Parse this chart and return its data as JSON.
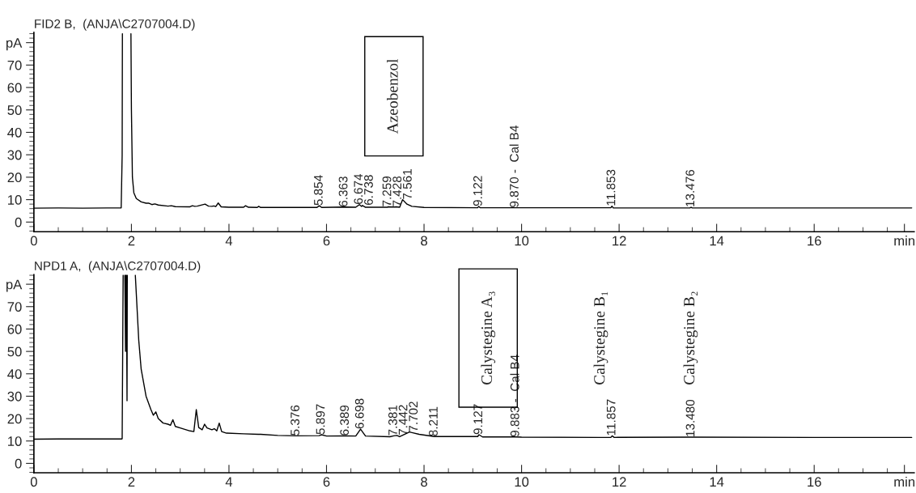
{
  "chart_data": [
    {
      "type": "line",
      "title": "FID2 B,  (ANJA\\C2707004.D)",
      "series": [
        {
          "color": "#000000",
          "x": [
            0,
            0.5,
            1.0,
            1.5,
            1.79,
            1.81,
            1.815,
            1.9,
            1.99,
            2.0,
            2.02,
            2.05,
            2.1,
            2.2,
            2.3,
            2.36,
            2.42,
            2.48,
            2.55,
            2.75,
            2.82,
            2.9,
            3.2,
            3.25,
            3.3,
            3.35,
            3.51,
            3.58,
            3.65,
            3.69,
            3.73,
            3.78,
            3.84,
            4.0,
            4.3,
            4.34,
            4.4,
            4.58,
            4.61,
            4.65,
            5.0,
            5.5,
            5.8,
            5.854,
            5.9,
            6.363,
            6.6,
            6.674,
            6.72,
            6.738,
            6.8,
            7.25,
            7.259,
            7.39,
            7.428,
            7.5,
            7.561,
            7.65,
            7.75,
            8.0,
            9.1,
            9.122,
            9.15,
            9.87,
            11.83,
            11.853,
            11.88,
            13.45,
            13.476,
            13.5,
            14,
            16,
            18
          ],
          "values": [
            6.2,
            6.3,
            6.2,
            6.3,
            6.3,
            30,
            84,
            null,
            84,
            50,
            20,
            13,
            10.5,
            9.0,
            8.4,
            8.4,
            7.8,
            8.1,
            7.6,
            7.1,
            7.3,
            6.9,
            6.8,
            7.3,
            7.0,
            7.1,
            8.0,
            7.1,
            7.0,
            7.2,
            6.9,
            8.5,
            6.8,
            6.6,
            6.6,
            7.3,
            6.6,
            6.5,
            7.0,
            6.5,
            6.5,
            6.5,
            6.5,
            7.3,
            6.5,
            6.7,
            6.6,
            7.8,
            7.0,
            7.4,
            6.6,
            6.6,
            6.8,
            6.7,
            6.8,
            6.6,
            10.0,
            8.0,
            7.0,
            6.5,
            6.4,
            7.0,
            6.4,
            6.4,
            6.4,
            7.1,
            6.3,
            6.3,
            6.6,
            6.3,
            6.3,
            6.3,
            6.3
          ]
        }
      ],
      "xlim": [
        0,
        18.05
      ],
      "ylim": [
        -4.3,
        84.5
      ],
      "xticks": [
        0,
        {
          "value": 0.5,
          "label": null
        },
        2,
        {
          "value": 1,
          "label": null
        },
        {
          "value": 1.5,
          "label": null
        },
        {
          "value": 2.5,
          "label": null
        },
        {
          "value": 3,
          "label": null
        },
        {
          "value": 3.5,
          "label": null
        },
        4,
        {
          "value": 4.5,
          "label": null
        },
        {
          "value": 5,
          "label": null
        },
        {
          "value": 5.5,
          "label": null
        },
        6,
        {
          "value": 6.5,
          "label": null
        },
        {
          "value": 7,
          "label": null
        },
        {
          "value": 7.5,
          "label": null
        },
        8,
        {
          "value": 8.5,
          "label": null
        },
        {
          "value": 9,
          "label": null
        },
        {
          "value": 9.5,
          "label": null
        },
        10,
        {
          "value": 10.5,
          "label": null
        },
        {
          "value": 11,
          "label": null
        },
        {
          "value": 11.5,
          "label": null
        },
        12,
        {
          "value": 12.5,
          "label": null
        },
        {
          "value": 13,
          "label": null
        },
        {
          "value": 13.5,
          "label": null
        },
        14,
        {
          "value": 14.5,
          "label": null
        },
        {
          "value": 15,
          "label": null
        },
        {
          "value": 15.5,
          "label": null
        },
        16,
        {
          "value": 16.5,
          "label": null
        },
        {
          "value": 17,
          "label": null
        },
        {
          "value": 17.5,
          "label": null
        },
        {
          "value": 17.85,
          "label": "min"
        }
      ],
      "yticks": [
        0,
        10,
        20,
        30,
        40,
        50,
        60,
        70,
        {
          "value": 80,
          "label": "pA"
        },
        {
          "value": -4,
          "label": null
        },
        {
          "value": -2,
          "label": null
        },
        {
          "value": 2,
          "label": null
        },
        {
          "value": 4,
          "label": null
        },
        {
          "value": 6,
          "label": null
        },
        {
          "value": 8,
          "label": null
        },
        {
          "value": 12,
          "label": null
        },
        {
          "value": 14,
          "label": null
        },
        {
          "value": 16,
          "label": null
        },
        {
          "value": 18,
          "label": null
        },
        {
          "value": 22,
          "label": null
        },
        {
          "value": 24,
          "label": null
        },
        {
          "value": 26,
          "label": null
        },
        {
          "value": 28,
          "label": null
        },
        {
          "value": 32,
          "label": null
        },
        {
          "value": 34,
          "label": null
        },
        {
          "value": 36,
          "label": null
        },
        {
          "value": 38,
          "label": null
        },
        {
          "value": 42,
          "label": null
        },
        {
          "value": 44,
          "label": null
        },
        {
          "value": 46,
          "label": null
        },
        {
          "value": 48,
          "label": null
        },
        {
          "value": 52,
          "label": null
        },
        {
          "value": 54,
          "label": null
        },
        {
          "value": 56,
          "label": null
        },
        {
          "value": 58,
          "label": null
        },
        {
          "value": 62,
          "label": null
        },
        {
          "value": 64,
          "label": null
        },
        {
          "value": 66,
          "label": null
        },
        {
          "value": 68,
          "label": null
        },
        {
          "value": 72,
          "label": null
        },
        {
          "value": 74,
          "label": null
        },
        {
          "value": 76,
          "label": null
        },
        {
          "value": 78,
          "label": null
        },
        {
          "value": 82,
          "label": null
        },
        {
          "value": 84,
          "label": null
        }
      ],
      "grid": false,
      "legend": false,
      "marker": "none",
      "line_style": "solid",
      "annotations": [
        {
          "text": "5.854",
          "x": 5.854,
          "y": 7.3
        },
        {
          "text": "6.363",
          "x": 6.363,
          "y": 6.7
        },
        {
          "text": "6.674",
          "x": 6.674,
          "y": 7.8
        },
        {
          "text": "6.738",
          "x": 6.738,
          "y": 7.4
        },
        {
          "text": "7.259",
          "x": 7.259,
          "y": 6.8
        },
        {
          "text": "7.428",
          "x": 7.428,
          "y": 6.8
        },
        {
          "text": "7.561",
          "x": 7.561,
          "y": 10.0
        },
        {
          "text": "9.122",
          "x": 9.122,
          "y": 7.0
        },
        {
          "text": "9.870 -  Cal B4",
          "x": 9.87,
          "y": 6.4
        },
        {
          "text": "11.853",
          "x": 11.853,
          "y": 7.1
        },
        {
          "text": "13.476",
          "x": 13.476,
          "y": 6.6
        },
        "Azeobenzol"
      ]
    },
    {
      "type": "line",
      "title": "NPD1 A,  (ANJA\\C2707004.D)",
      "series": [
        {
          "color": "#000000",
          "x": [
            0,
            0.5,
            1.0,
            1.5,
            1.8,
            1.81,
            1.83,
            1.84,
            1.865,
            1.88,
            1.885,
            1.89,
            1.895,
            1.91,
            1.915,
            2.0,
            2.08,
            2.15,
            2.2,
            2.3,
            2.4,
            2.45,
            2.5,
            2.55,
            2.65,
            2.75,
            2.8,
            2.85,
            2.9,
            3.0,
            3.2,
            3.28,
            3.33,
            3.38,
            3.45,
            3.5,
            3.55,
            3.65,
            3.7,
            3.75,
            3.8,
            3.85,
            3.95,
            4.3,
            4.6,
            4.65,
            5.0,
            5.376,
            5.85,
            5.897,
            6.0,
            6.389,
            6.6,
            6.698,
            6.8,
            7.3,
            7.381,
            7.442,
            7.5,
            7.702,
            7.9,
            8.211,
            9.1,
            9.127,
            9.2,
            9.32,
            9.883,
            10,
            11.63,
            11.83,
            11.857,
            11.9,
            13.47,
            13.48,
            16,
            18
          ],
          "values": [
            10.8,
            10.9,
            10.9,
            10.9,
            10.9,
            11,
            84,
            null,
            84,
            50,
            84,
            null,
            84,
            28,
            84,
            null,
            84,
            55,
            42,
            30,
            24,
            21.5,
            23,
            20,
            18,
            17.5,
            17,
            19.5,
            16.5,
            15.8,
            14.5,
            14.2,
            24,
            16,
            15,
            17.5,
            15.8,
            15,
            15.5,
            14.5,
            18,
            14.2,
            13.5,
            13.2,
            13.0,
            13.0,
            12.5,
            12.3,
            12.4,
            12.8,
            12.2,
            12.3,
            12.2,
            15.3,
            12.2,
            11.9,
            12.3,
            12.5,
            11.9,
            14.0,
            13.0,
            12.0,
            12.0,
            12.8,
            11.8,
            11.8,
            11.8,
            11.7,
            11.6,
            11.6,
            12.3,
            11.6,
            11.7,
            11.7,
            11.6,
            11.6
          ]
        }
      ],
      "xlim": [
        0,
        18.05
      ],
      "ylim": [
        -4.2,
        84.3
      ],
      "xticks": [
        0,
        {
          "value": 0.5,
          "label": null
        },
        2,
        {
          "value": 1,
          "label": null
        },
        {
          "value": 1.5,
          "label": null
        },
        {
          "value": 2.5,
          "label": null
        },
        {
          "value": 3,
          "label": null
        },
        {
          "value": 3.5,
          "label": null
        },
        4,
        {
          "value": 4.5,
          "label": null
        },
        {
          "value": 5,
          "label": null
        },
        {
          "value": 5.5,
          "label": null
        },
        6,
        {
          "value": 6.5,
          "label": null
        },
        {
          "value": 7,
          "label": null
        },
        {
          "value": 7.5,
          "label": null
        },
        8,
        {
          "value": 8.5,
          "label": null
        },
        {
          "value": 9,
          "label": null
        },
        {
          "value": 9.5,
          "label": null
        },
        10,
        {
          "value": 10.5,
          "label": null
        },
        {
          "value": 11,
          "label": null
        },
        {
          "value": 11.5,
          "label": null
        },
        12,
        {
          "value": 12.5,
          "label": null
        },
        {
          "value": 13,
          "label": null
        },
        {
          "value": 13.5,
          "label": null
        },
        14,
        {
          "value": 14.5,
          "label": null
        },
        {
          "value": 15,
          "label": null
        },
        {
          "value": 15.5,
          "label": null
        },
        16,
        {
          "value": 16.5,
          "label": null
        },
        {
          "value": 17,
          "label": null
        },
        {
          "value": 17.5,
          "label": null
        },
        {
          "value": 17.85,
          "label": "min"
        }
      ],
      "yticks": [
        0,
        10,
        20,
        30,
        40,
        50,
        60,
        70,
        {
          "value": 80,
          "label": "pA"
        },
        {
          "value": -4,
          "label": null
        },
        {
          "value": -2,
          "label": null
        },
        {
          "value": 2,
          "label": null
        },
        {
          "value": 4,
          "label": null
        },
        {
          "value": 6,
          "label": null
        },
        {
          "value": 8,
          "label": null
        },
        {
          "value": 12,
          "label": null
        },
        {
          "value": 14,
          "label": null
        },
        {
          "value": 16,
          "label": null
        },
        {
          "value": 18,
          "label": null
        },
        {
          "value": 22,
          "label": null
        },
        {
          "value": 24,
          "label": null
        },
        {
          "value": 26,
          "label": null
        },
        {
          "value": 28,
          "label": null
        },
        {
          "value": 32,
          "label": null
        },
        {
          "value": 34,
          "label": null
        },
        {
          "value": 36,
          "label": null
        },
        {
          "value": 38,
          "label": null
        },
        {
          "value": 42,
          "label": null
        },
        {
          "value": 44,
          "label": null
        },
        {
          "value": 46,
          "label": null
        },
        {
          "value": 48,
          "label": null
        },
        {
          "value": 52,
          "label": null
        },
        {
          "value": 54,
          "label": null
        },
        {
          "value": 56,
          "label": null
        },
        {
          "value": 58,
          "label": null
        },
        {
          "value": 62,
          "label": null
        },
        {
          "value": 64,
          "label": null
        },
        {
          "value": 66,
          "label": null
        },
        {
          "value": 68,
          "label": null
        },
        {
          "value": 72,
          "label": null
        },
        {
          "value": 74,
          "label": null
        },
        {
          "value": 76,
          "label": null
        },
        {
          "value": 78,
          "label": null
        },
        {
          "value": 82,
          "label": null
        },
        {
          "value": 84,
          "label": null
        }
      ],
      "grid": false,
      "legend": false,
      "marker": "none",
      "line_style": "solid",
      "annotations": [
        {
          "text": "5.376",
          "x": 5.376,
          "y": 12.3
        },
        {
          "text": "5.897",
          "x": 5.897,
          "y": 12.8
        },
        {
          "text": "6.389",
          "x": 6.389,
          "y": 12.3
        },
        {
          "text": "6.698",
          "x": 6.698,
          "y": 15.3
        },
        {
          "text": "7.381",
          "x": 7.381,
          "y": 12.3
        },
        {
          "text": "7.442",
          "x": 7.442,
          "y": 12.5
        },
        {
          "text": "7.702",
          "x": 7.702,
          "y": 14.0
        },
        {
          "text": "8.211",
          "x": 8.211,
          "y": 12.0
        },
        {
          "text": "9.127",
          "x": 9.127,
          "y": 12.8
        },
        {
          "text": "9.883 -  Cal B4",
          "x": 9.883,
          "y": 11.8
        },
        {
          "text": "11.857",
          "x": 11.857,
          "y": 12.3
        },
        {
          "text": "13.480",
          "x": 13.48,
          "y": 11.7
        },
        "Calystegine A₃",
        "Calystegine B₁",
        "Calystegine B₂"
      ]
    }
  ]
}
